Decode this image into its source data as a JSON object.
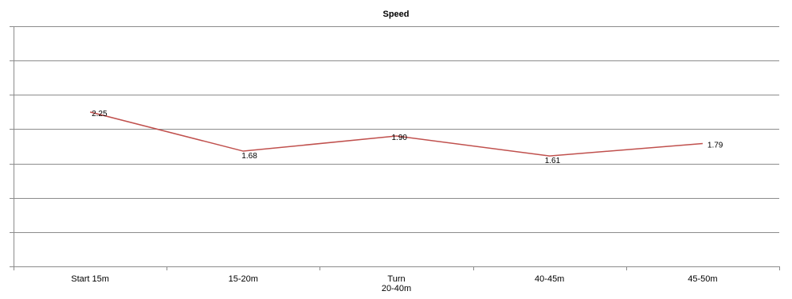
{
  "chart_data": {
    "type": "line",
    "title": "Speed",
    "xlabel": "",
    "ylabel": "",
    "categories": [
      "Start 15m",
      "15-20m",
      "Turn\n20-40m",
      "40-45m",
      "45-50m"
    ],
    "series": [
      {
        "values": [
          2.25,
          1.68,
          1.9,
          1.61,
          1.79
        ],
        "labels": [
          "2.25",
          "1.68",
          "1.90",
          "1.61",
          "1.79"
        ],
        "color": "#c0504d"
      }
    ],
    "ylim": [
      0,
      3.5
    ],
    "y_gridline_step": 0.5,
    "grid": true,
    "legend": "none",
    "y_tick_labels_shown": false
  }
}
